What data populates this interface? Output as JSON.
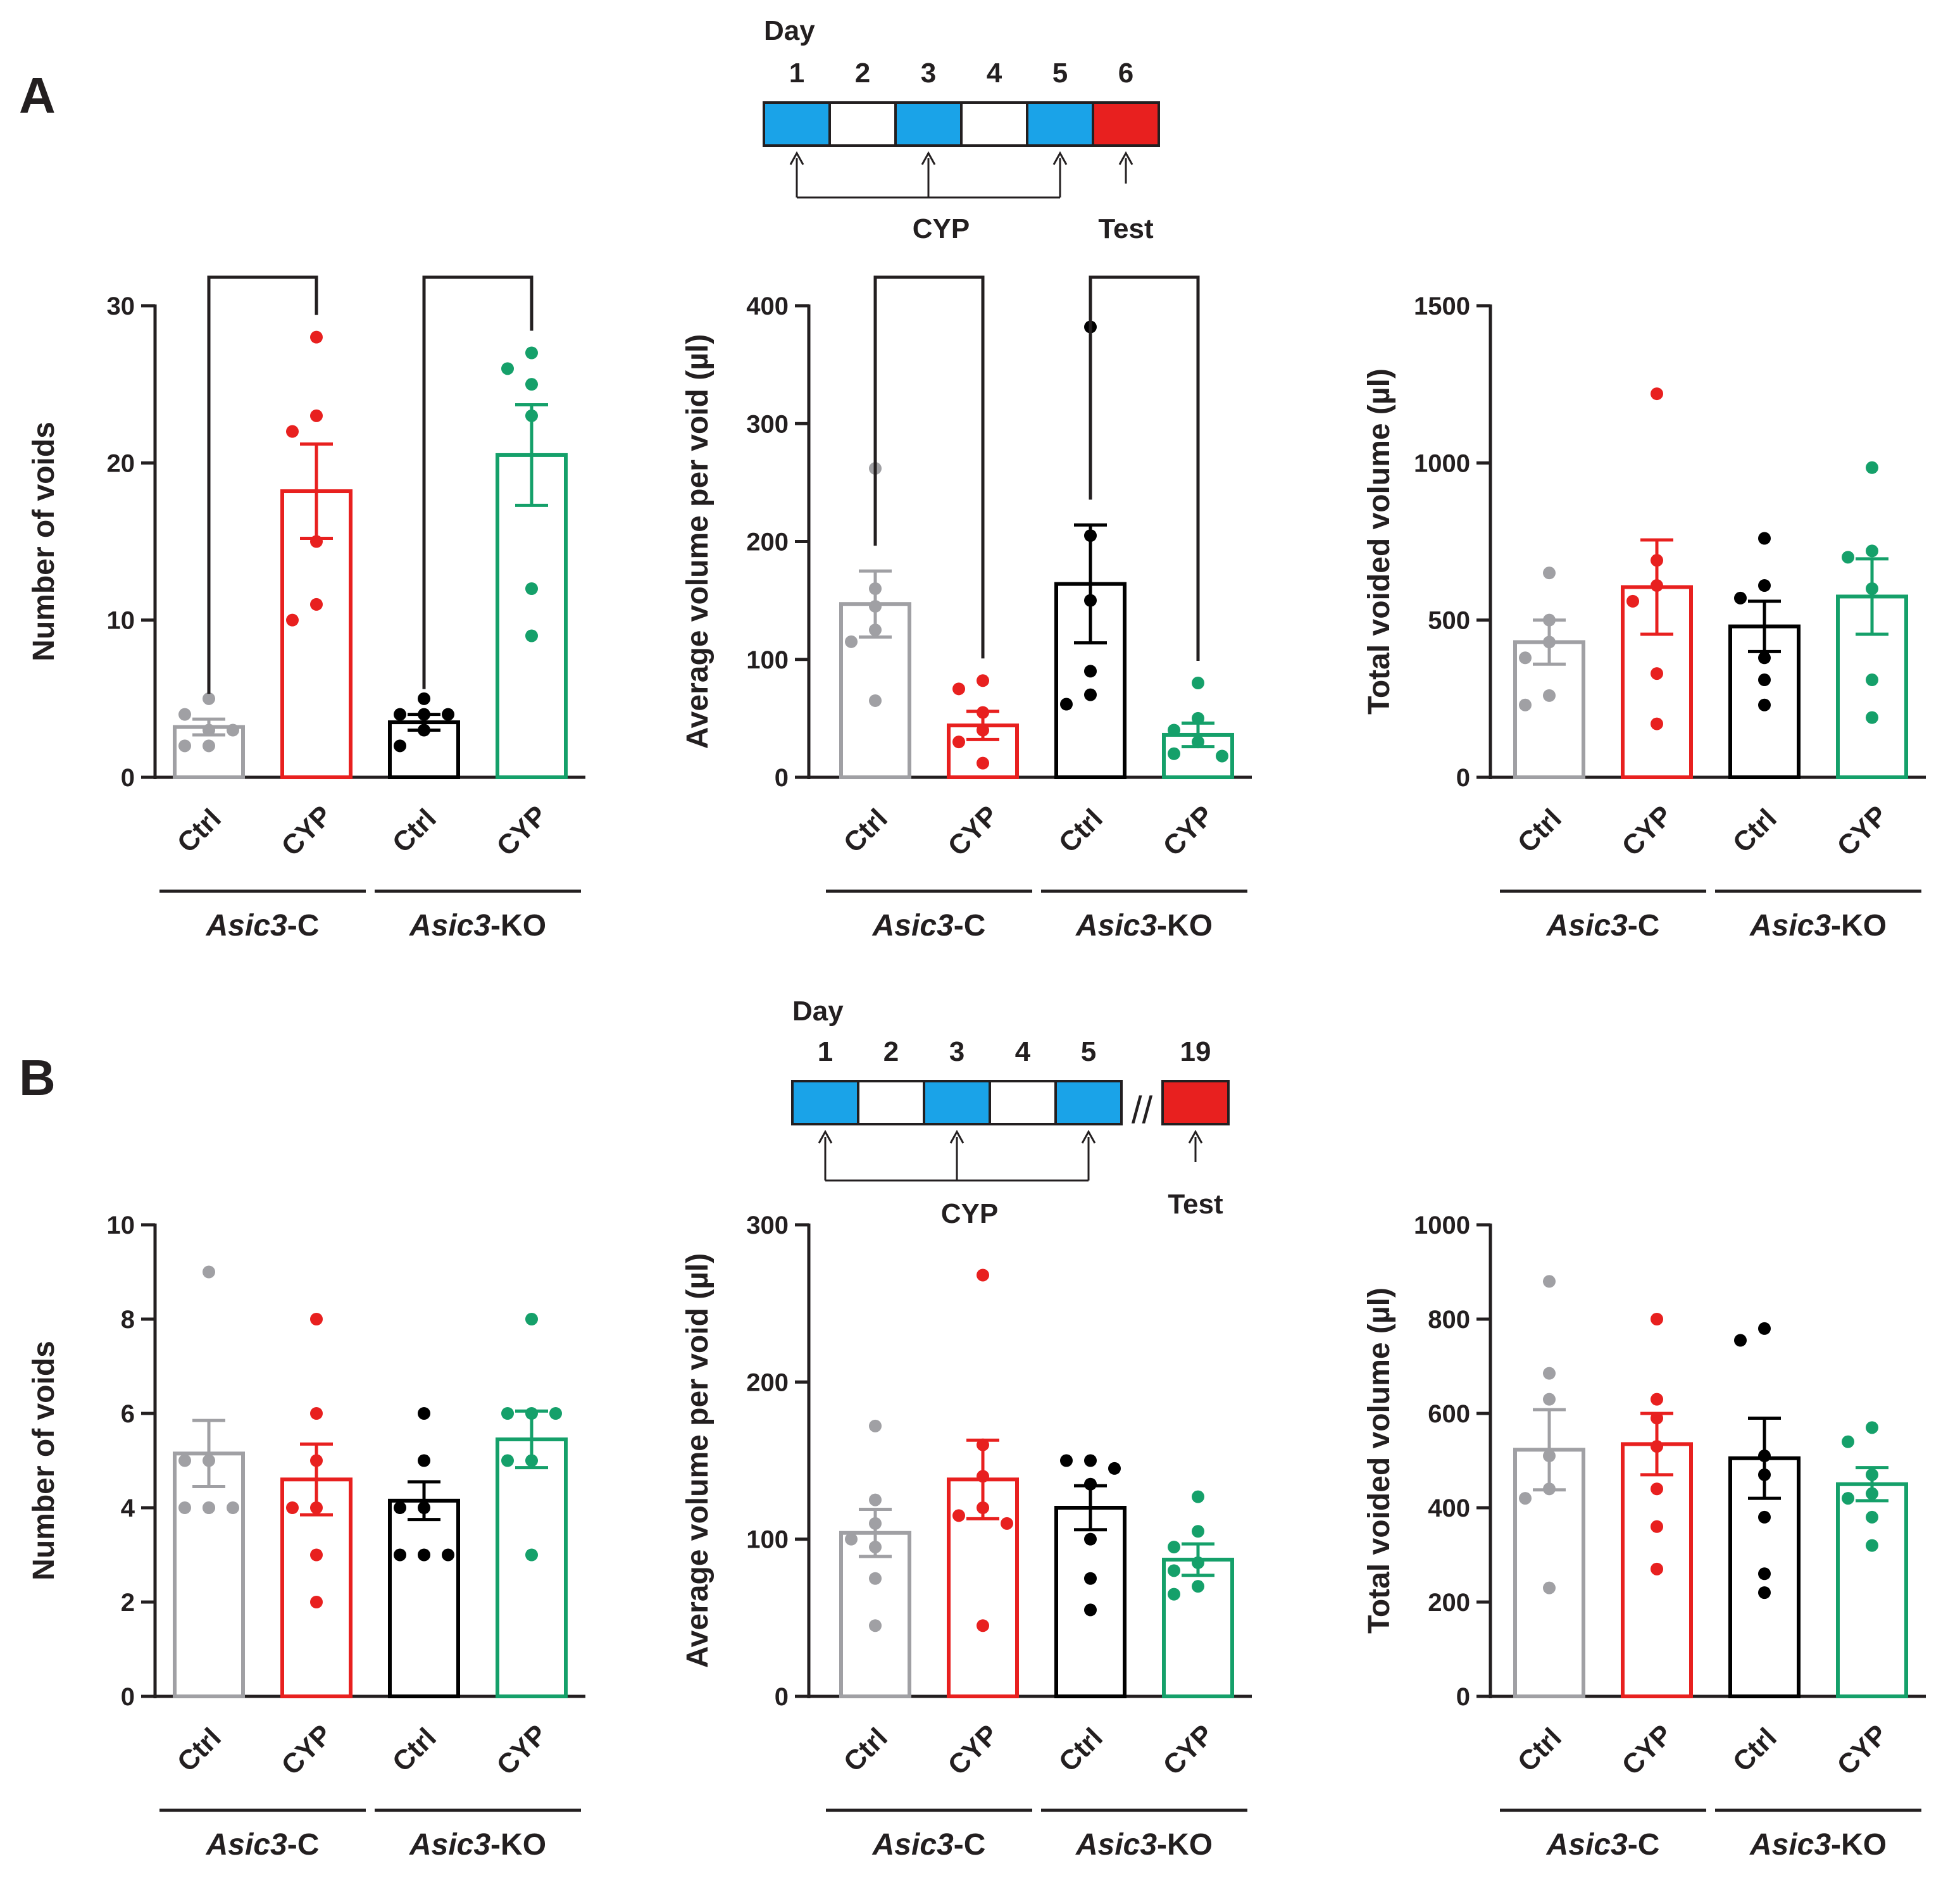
{
  "panel_letters": [
    "A",
    "B"
  ],
  "group_parts": {
    "gene": "Asic3",
    "control_suffix": "-C",
    "ko_suffix": "-KO"
  },
  "colors": {
    "ctrl_c": "#a0a0a4",
    "cyp_c": "#e8201f",
    "ctrl_ko": "#000000",
    "cyp_ko": "#15a06a",
    "cyp_day": "#1aa3e8",
    "test_day": "#e8201f",
    "empty_day": "#ffffff"
  },
  "timelines": [
    {
      "day_label": "Day",
      "days": [
        "1",
        "2",
        "3",
        "4",
        "5",
        "6"
      ],
      "day_types": [
        "cyp",
        "none",
        "cyp",
        "none",
        "cyp",
        "test"
      ],
      "cyp_label": "CYP",
      "test_label": "Test"
    },
    {
      "day_label": "Day",
      "days": [
        "1",
        "2",
        "3",
        "4",
        "5",
        "19"
      ],
      "day_types": [
        "cyp",
        "none",
        "cyp",
        "none",
        "cyp",
        "test"
      ],
      "break_mark": "//",
      "cyp_label": "CYP",
      "test_label": "Test"
    }
  ],
  "chart_data": [
    {
      "panel": "A",
      "type": "bar",
      "ylabel": "Number of voids",
      "ylim": [
        0,
        30
      ],
      "ticks": [
        "0",
        "10",
        "20",
        "30"
      ],
      "categories": [
        "Ctrl",
        "CYP",
        "Ctrl",
        "CYP"
      ],
      "groups": [
        "Asic3-C",
        "Asic3-KO"
      ],
      "means": [
        3.2,
        18.2,
        3.5,
        20.5
      ],
      "sem": [
        0.5,
        3.0,
        0.5,
        3.2
      ],
      "points": [
        [
          5,
          4,
          3,
          3,
          2,
          2
        ],
        [
          28,
          23,
          22,
          15,
          11,
          10
        ],
        [
          5,
          4,
          4,
          4,
          3,
          2
        ],
        [
          27,
          26,
          25,
          23,
          12,
          9
        ]
      ],
      "significance": [
        [
          0,
          1
        ],
        [
          2,
          3
        ]
      ]
    },
    {
      "panel": "A",
      "type": "bar",
      "ylabel": "Average volume per void (µl)",
      "ylim": [
        0,
        400
      ],
      "ticks": [
        "0",
        "100",
        "200",
        "300",
        "400"
      ],
      "categories": [
        "Ctrl",
        "CYP",
        "Ctrl",
        "CYP"
      ],
      "groups": [
        "Asic3-C",
        "Asic3-KO"
      ],
      "means": [
        147,
        44,
        164,
        36
      ],
      "sem": [
        28,
        12,
        50,
        10
      ],
      "points": [
        [
          262,
          160,
          145,
          125,
          115,
          65
        ],
        [
          82,
          75,
          55,
          40,
          30,
          12
        ],
        [
          382,
          205,
          150,
          90,
          70,
          62
        ],
        [
          80,
          50,
          40,
          30,
          20,
          18
        ]
      ],
      "significance": [
        [
          0,
          1
        ],
        [
          2,
          3
        ]
      ]
    },
    {
      "panel": "A",
      "type": "bar",
      "ylabel": "Total voided volume (µl)",
      "ylim": [
        0,
        1500
      ],
      "ticks": [
        "0",
        "500",
        "1000",
        "1500"
      ],
      "categories": [
        "Ctrl",
        "CYP",
        "Ctrl",
        "CYP"
      ],
      "groups": [
        "Asic3-C",
        "Asic3-KO"
      ],
      "means": [
        430,
        605,
        480,
        575
      ],
      "sem": [
        70,
        150,
        80,
        120
      ],
      "points": [
        [
          650,
          500,
          430,
          380,
          260,
          230
        ],
        [
          1220,
          690,
          610,
          560,
          330,
          170
        ],
        [
          760,
          610,
          570,
          380,
          310,
          230
        ],
        [
          985,
          720,
          700,
          600,
          310,
          190
        ]
      ],
      "significance": []
    },
    {
      "panel": "B",
      "type": "bar",
      "ylabel": "Number of voids",
      "ylim": [
        0,
        10
      ],
      "ticks": [
        "0",
        "2",
        "4",
        "6",
        "8",
        "10"
      ],
      "categories": [
        "Ctrl",
        "CYP",
        "Ctrl",
        "CYP"
      ],
      "groups": [
        "Asic3-C",
        "Asic3-KO"
      ],
      "means": [
        5.15,
        4.6,
        4.15,
        5.45
      ],
      "sem": [
        0.7,
        0.75,
        0.4,
        0.6
      ],
      "points": [
        [
          9,
          5,
          5,
          4,
          4,
          4,
          4
        ],
        [
          8,
          6,
          5,
          4,
          4,
          3,
          2
        ],
        [
          6,
          5,
          4,
          4,
          3,
          3,
          3
        ],
        [
          8,
          6,
          6,
          6,
          5,
          5,
          3
        ]
      ],
      "significance": []
    },
    {
      "panel": "B",
      "type": "bar",
      "ylabel": "Average volume per void (µl)",
      "ylim": [
        0,
        300
      ],
      "ticks": [
        "0",
        "100",
        "200",
        "300"
      ],
      "categories": [
        "Ctrl",
        "CYP",
        "Ctrl",
        "CYP"
      ],
      "groups": [
        "Asic3-C",
        "Asic3-KO"
      ],
      "means": [
        104,
        138,
        120,
        87
      ],
      "sem": [
        15,
        25,
        14,
        10
      ],
      "points": [
        [
          172,
          125,
          110,
          100,
          95,
          75,
          45
        ],
        [
          268,
          160,
          140,
          120,
          115,
          110,
          45
        ],
        [
          150,
          150,
          145,
          135,
          100,
          75,
          55
        ],
        [
          127,
          105,
          95,
          85,
          80,
          70,
          65
        ]
      ],
      "significance": []
    },
    {
      "panel": "B",
      "type": "bar",
      "ylabel": "Total voided volume (µl)",
      "ylim": [
        0,
        1000
      ],
      "ticks": [
        "0",
        "200",
        "400",
        "600",
        "800",
        "1000"
      ],
      "categories": [
        "Ctrl",
        "CYP",
        "Ctrl",
        "CYP"
      ],
      "groups": [
        "Asic3-C",
        "Asic3-KO"
      ],
      "means": [
        523,
        535,
        505,
        450
      ],
      "sem": [
        85,
        65,
        85,
        35
      ],
      "points": [
        [
          880,
          685,
          630,
          510,
          440,
          420,
          230
        ],
        [
          800,
          630,
          590,
          530,
          440,
          360,
          270
        ],
        [
          780,
          755,
          510,
          470,
          380,
          260,
          220
        ],
        [
          570,
          540,
          470,
          430,
          420,
          380,
          320
        ]
      ],
      "significance": []
    }
  ]
}
